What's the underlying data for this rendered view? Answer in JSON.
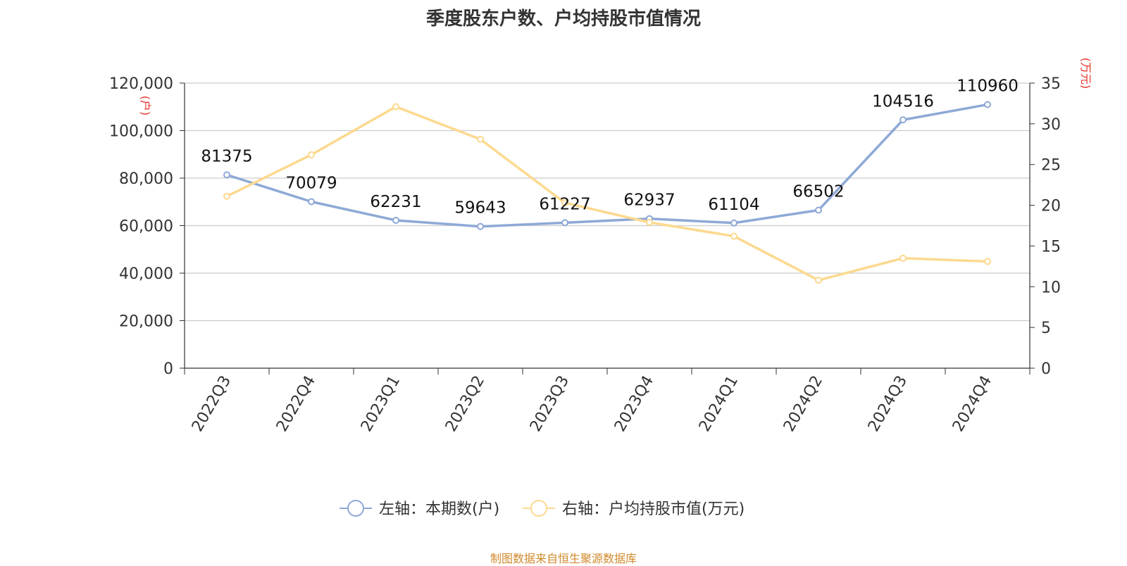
{
  "title": "季度股东户数、户均持股市值情况",
  "footer": "制图数据来自恒生聚源数据库",
  "left_axis_unit": "(户)",
  "right_axis_unit": "(万元)",
  "colors": {
    "left_series": "#8ea9d6",
    "right_series": "#fcd98f",
    "unit_label": "#e8332a",
    "grid": "#cccccc",
    "axis": "#333333"
  },
  "legend": [
    {
      "label": "左轴：本期数(户)",
      "color": "#8ea9d6"
    },
    {
      "label": "右轴：户均持股市值(万元)",
      "color": "#fcd98f"
    }
  ],
  "chart_data": {
    "type": "line",
    "categories": [
      "2022Q3",
      "2022Q4",
      "2023Q1",
      "2023Q2",
      "2023Q3",
      "2023Q4",
      "2024Q1",
      "2024Q2",
      "2024Q3",
      "2024Q4"
    ],
    "left_axis": {
      "min": 0,
      "max": 120000,
      "ticks": [
        "0",
        "20,000",
        "40,000",
        "60,000",
        "80,000",
        "100,000",
        "120,000"
      ]
    },
    "right_axis": {
      "min": 0,
      "max": 35,
      "ticks": [
        "0",
        "5",
        "10",
        "15",
        "20",
        "25",
        "30",
        "35"
      ]
    },
    "series": [
      {
        "name": "左轴：本期数(户)",
        "axis": "left",
        "values": [
          81375,
          70079,
          62231,
          59643,
          61227,
          62937,
          61104,
          66502,
          104516,
          110960
        ],
        "labels": [
          "81375",
          "70079",
          "62231",
          "59643",
          "61227",
          "62937",
          "61104",
          "66502",
          "104516",
          "110960"
        ]
      },
      {
        "name": "右轴：户均持股市值(万元)",
        "axis": "right",
        "values": [
          21.1,
          26.2,
          32.1,
          28.1,
          20.3,
          17.9,
          16.2,
          10.8,
          13.5,
          13.1
        ]
      }
    ],
    "grid": true,
    "legend_position": "bottom"
  }
}
